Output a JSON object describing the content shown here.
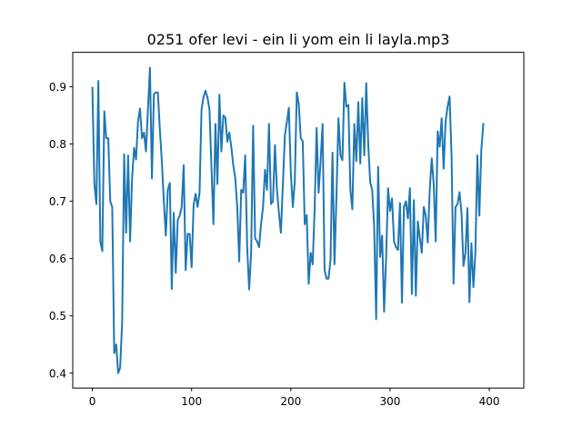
{
  "chart_data": {
    "type": "line",
    "title": "0251 ofer levi - ein li yom ein li layla.mp3",
    "xlabel": "",
    "ylabel": "",
    "xlim": [
      -19.8,
      434.8
    ],
    "ylim": [
      0.374,
      0.96
    ],
    "xticks": [
      0,
      100,
      200,
      300,
      400
    ],
    "yticks": [
      0.4,
      0.5,
      0.6,
      0.7,
      0.8,
      0.9
    ],
    "ytick_labels": [
      "0.4",
      "0.5",
      "0.6",
      "0.7",
      "0.8",
      "0.9"
    ],
    "grid": false,
    "line_color": "#1f77b4",
    "series": [
      {
        "x_start": 0,
        "x_step": 2,
        "values": [
          0.898,
          0.73,
          0.695,
          0.91,
          0.63,
          0.613,
          0.857,
          0.81,
          0.81,
          0.7,
          0.69,
          0.435,
          0.45,
          0.4,
          0.41,
          0.49,
          0.782,
          0.645,
          0.78,
          0.63,
          0.74,
          0.793,
          0.773,
          0.84,
          0.862,
          0.81,
          0.82,
          0.787,
          0.86,
          0.933,
          0.74,
          0.887,
          0.89,
          0.89,
          0.825,
          0.77,
          0.7,
          0.64,
          0.72,
          0.732,
          0.547,
          0.68,
          0.575,
          0.667,
          0.675,
          0.69,
          0.763,
          0.58,
          0.643,
          0.643,
          0.585,
          0.693,
          0.713,
          0.69,
          0.715,
          0.86,
          0.882,
          0.893,
          0.881,
          0.86,
          0.76,
          0.66,
          0.835,
          0.73,
          0.886,
          0.787,
          0.85,
          0.846,
          0.804,
          0.82,
          0.795,
          0.763,
          0.74,
          0.69,
          0.595,
          0.72,
          0.715,
          0.78,
          0.62,
          0.546,
          0.61,
          0.832,
          0.635,
          0.63,
          0.62,
          0.66,
          0.69,
          0.755,
          0.72,
          0.835,
          0.695,
          0.7,
          0.798,
          0.72,
          0.68,
          0.645,
          0.73,
          0.815,
          0.838,
          0.863,
          0.75,
          0.69,
          0.735,
          0.89,
          0.87,
          0.81,
          0.805,
          0.66,
          0.676,
          0.556,
          0.61,
          0.59,
          0.687,
          0.828,
          0.715,
          0.77,
          0.835,
          0.58,
          0.565,
          0.565,
          0.598,
          0.785,
          0.59,
          0.71,
          0.845,
          0.78,
          0.772,
          0.907,
          0.865,
          0.868,
          0.72,
          0.686,
          0.835,
          0.77,
          0.873,
          0.766,
          0.88,
          0.78,
          0.906,
          0.8,
          0.733,
          0.72,
          0.655,
          0.494,
          0.76,
          0.603,
          0.64,
          0.507,
          0.6,
          0.723,
          0.683,
          0.705,
          0.63,
          0.62,
          0.615,
          0.697,
          0.523,
          0.69,
          0.7,
          0.67,
          0.723,
          0.538,
          0.702,
          0.535,
          0.665,
          0.636,
          0.61,
          0.69,
          0.675,
          0.628,
          0.72,
          0.775,
          0.73,
          0.63,
          0.822,
          0.795,
          0.845,
          0.757,
          0.84,
          0.865,
          0.883,
          0.78,
          0.556,
          0.69,
          0.695,
          0.716,
          0.68,
          0.587,
          0.61,
          0.688,
          0.524,
          0.627,
          0.55,
          0.61,
          0.78,
          0.675,
          0.79,
          0.835
        ]
      }
    ]
  }
}
